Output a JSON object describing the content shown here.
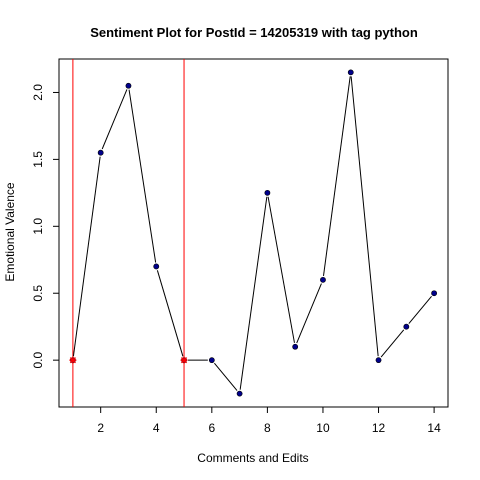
{
  "chart_data": {
    "type": "line",
    "title": "Sentiment Plot for PostId =  14205319  with tag  python",
    "xlabel": "Comments and Edits",
    "ylabel": "Emotional Valence",
    "xlim": [
      0.5,
      14.5
    ],
    "ylim": [
      -0.35,
      2.25
    ],
    "x_ticks": [
      2,
      4,
      6,
      8,
      10,
      12,
      14
    ],
    "y_ticks": [
      0.0,
      0.5,
      1.0,
      1.5,
      2.0
    ],
    "y_tick_labels": [
      "0.0",
      "0.5",
      "1.0",
      "1.5",
      "2.0"
    ],
    "grid": false,
    "legend": "none",
    "series": [
      {
        "x": [
          1,
          2,
          3,
          4,
          5,
          6,
          7,
          8,
          9,
          10,
          11,
          12,
          13,
          14
        ],
        "values": [
          0.0,
          1.55,
          2.05,
          0.7,
          0.0,
          0.0,
          -0.25,
          1.25,
          0.1,
          0.6,
          2.15,
          0.0,
          0.25,
          0.5
        ],
        "line_color": "#000000",
        "point_color": "#00008b"
      }
    ],
    "vertical_lines": [
      1,
      5
    ],
    "vertical_line_color": "#ff0000",
    "highlighted_points": [
      {
        "x": 1,
        "y": 0.0
      },
      {
        "x": 5,
        "y": 0.0
      }
    ],
    "highlight_color": "#ff0000"
  }
}
